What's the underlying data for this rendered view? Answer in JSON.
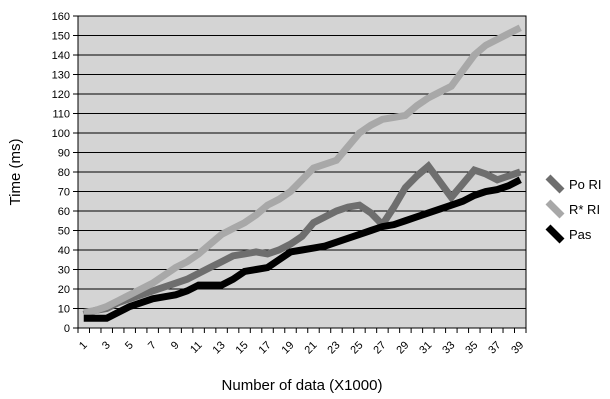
{
  "chart_data": {
    "type": "line",
    "xlabel": "Number of data (X1000)",
    "ylabel": "Time (ms)",
    "ylim": [
      0,
      160
    ],
    "y_ticks": [
      0,
      10,
      20,
      30,
      40,
      50,
      60,
      70,
      80,
      90,
      100,
      110,
      120,
      130,
      140,
      150,
      160
    ],
    "x": [
      1,
      2,
      3,
      4,
      5,
      6,
      7,
      8,
      9,
      10,
      11,
      12,
      13,
      14,
      15,
      16,
      17,
      18,
      19,
      20,
      21,
      22,
      23,
      24,
      25,
      26,
      27,
      28,
      29,
      30,
      31,
      32,
      33,
      34,
      35,
      36,
      37,
      38,
      39
    ],
    "x_tick_labels": [
      "1",
      "3",
      "5",
      "7",
      "9",
      "11",
      "13",
      "15",
      "17",
      "19",
      "21",
      "23",
      "25",
      "27",
      "29",
      "31",
      "33",
      "35",
      "37",
      "39"
    ],
    "grid": "horizontal",
    "plot_background": "#d4d4d4",
    "legend_position": "right",
    "series": [
      {
        "name": "Po RI",
        "color": "#6e6e6e",
        "values": [
          7,
          9,
          10,
          13,
          15,
          17,
          19,
          21,
          23,
          25,
          28,
          31,
          34,
          37,
          38,
          39,
          38,
          40,
          43,
          47,
          54,
          57,
          60,
          62,
          63,
          59,
          53,
          62,
          72,
          78,
          83,
          75,
          67,
          74,
          81,
          79,
          76,
          78,
          80
        ]
      },
      {
        "name": "R* RI",
        "color": "#a8a8a8",
        "values": [
          8,
          9,
          11,
          14,
          17,
          20,
          23,
          27,
          31,
          34,
          38,
          43,
          48,
          51,
          54,
          58,
          63,
          66,
          70,
          76,
          82,
          84,
          86,
          93,
          100,
          104,
          107,
          108,
          109,
          114,
          118,
          121,
          124,
          132,
          140,
          145,
          148,
          151,
          154
        ]
      },
      {
        "name": "Pas",
        "color": "#000000",
        "values": [
          5,
          5,
          5,
          8,
          11,
          13,
          15,
          16,
          17,
          19,
          22,
          22,
          22,
          25,
          29,
          30,
          31,
          35,
          39,
          40,
          41,
          42,
          44,
          46,
          48,
          50,
          52,
          53,
          55,
          57,
          59,
          61,
          63,
          65,
          68,
          70,
          71,
          73,
          76
        ]
      }
    ]
  }
}
